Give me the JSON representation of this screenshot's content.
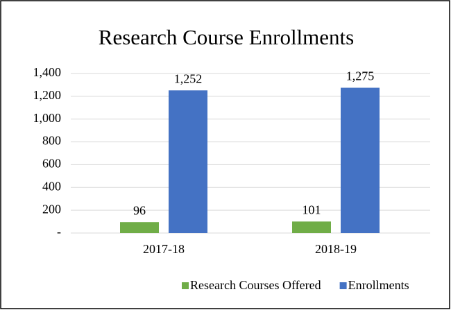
{
  "chart_data": {
    "type": "bar",
    "title": "Research Course Enrollments",
    "categories": [
      "2017-18",
      "2018-19"
    ],
    "series": [
      {
        "name": "Research Courses Offered",
        "color": "#70ad47",
        "values": [
          96,
          101
        ]
      },
      {
        "name": "Enrollments",
        "color": "#4472c4",
        "values": [
          1252,
          1275
        ],
        "value_labels": [
          "1,252",
          "1,275"
        ]
      }
    ],
    "ylim": [
      0,
      1400
    ],
    "yticks": [
      {
        "value": 0,
        "label": "-"
      },
      200,
      400,
      600,
      800,
      {
        "value": 1000,
        "label": "1,000"
      },
      {
        "value": 1200,
        "label": "1,200"
      },
      {
        "value": 1400,
        "label": "1,400"
      }
    ],
    "grid": true,
    "legend": "bottom"
  }
}
